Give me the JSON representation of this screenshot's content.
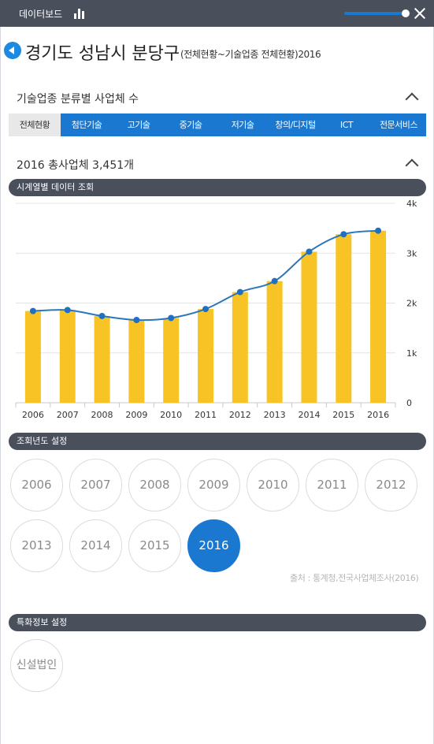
{
  "header": {
    "title": "데이터보드",
    "chart_icon": "bar-chart-icon",
    "close_icon": "close-icon"
  },
  "page": {
    "title": "경기도 성남시 분당구",
    "subtitle": "(전체현황~기술업종 전체현황)2016"
  },
  "section_category": {
    "title": "기술업종 분류별 사업체 수",
    "tabs": [
      "전체현황",
      "첨단기술",
      "고기술",
      "중기술",
      "저기술",
      "창의/디지털",
      "ICT",
      "전문서비스"
    ],
    "active_tab": 0
  },
  "section_total": {
    "title": "2016 총사업체 3,451개"
  },
  "timeseries": {
    "title": "시계열별 데이터 조회"
  },
  "chart_data": {
    "type": "bar",
    "categories": [
      "2006",
      "2007",
      "2008",
      "2009",
      "2010",
      "2011",
      "2012",
      "2013",
      "2014",
      "2015",
      "2016"
    ],
    "values": [
      1840,
      1860,
      1740,
      1660,
      1700,
      1880,
      2220,
      2440,
      3030,
      3380,
      3451
    ],
    "series": [
      {
        "type": "bar",
        "values": [
          1840,
          1860,
          1740,
          1660,
          1700,
          1880,
          2220,
          2440,
          3030,
          3380,
          3451
        ]
      },
      {
        "type": "line",
        "values": [
          1840,
          1860,
          1740,
          1660,
          1700,
          1880,
          2220,
          2440,
          3030,
          3380,
          3451
        ]
      }
    ],
    "ylim": [
      0,
      4000
    ],
    "yticks": [
      "0",
      "1k",
      "2k",
      "3k",
      "4k"
    ],
    "y_axis_side": "right",
    "grid": true,
    "colors": {
      "bar": "#f7c325",
      "line": "#2a77bb",
      "marker": "#1f6fc2"
    }
  },
  "year_settings": {
    "title": "조회년도 설정",
    "years": [
      "2006",
      "2007",
      "2008",
      "2009",
      "2010",
      "2011",
      "2012",
      "2013",
      "2014",
      "2015",
      "2016"
    ],
    "selected": "2016",
    "source": "출처 : 통계청,전국사업체조사(2016)"
  },
  "special_settings": {
    "title": "특화정보 설정",
    "button": "신설법인"
  },
  "colors": {
    "accent": "#1b78d0",
    "header_bg": "#4a4f5c"
  }
}
